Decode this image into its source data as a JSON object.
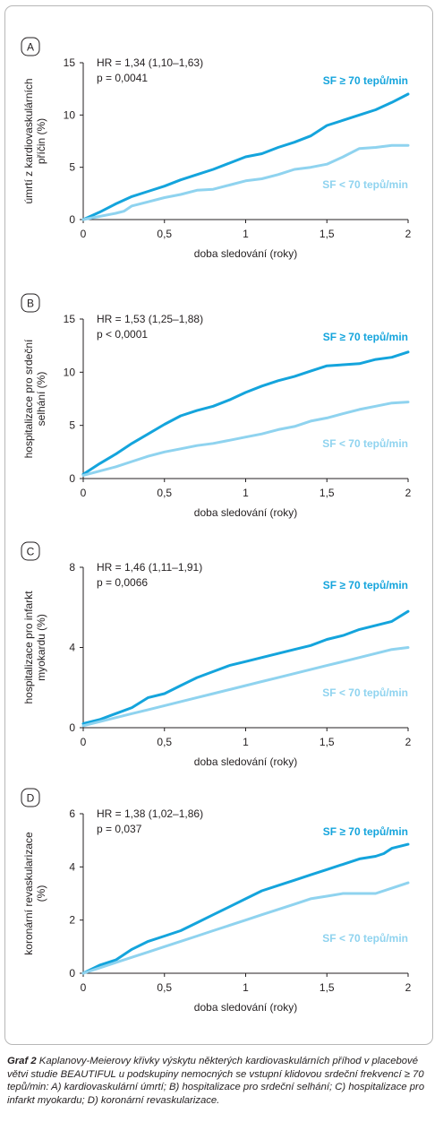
{
  "colors": {
    "high": "#14a4dc",
    "low": "#8fd3ef",
    "axis": "#231f20",
    "border": "#b7b7b7"
  },
  "chart_data": [
    {
      "type": "line",
      "panel": "A",
      "ylabel": [
        "úmrtí z kardiovaskulárních",
        "příčin (%)"
      ],
      "xlabel": "doba sledování (roky)",
      "hr": "HR = 1,34 (1,10–1,63)",
      "p": "p = 0,0041",
      "xlim": [
        0,
        2
      ],
      "ylim": [
        0,
        15
      ],
      "xticks": [
        0,
        0.5,
        1,
        1.5,
        2
      ],
      "xtick_labels": [
        "0",
        "0,5",
        "1",
        "1,5",
        "2"
      ],
      "yticks": [
        0,
        5,
        10,
        15
      ],
      "ytick_labels": [
        "0",
        "5",
        "10",
        "15"
      ],
      "series": [
        {
          "name": "SF ≥ 70 tepů/min",
          "kind": "high",
          "x": [
            0,
            0.1,
            0.2,
            0.3,
            0.4,
            0.5,
            0.6,
            0.7,
            0.8,
            0.9,
            1.0,
            1.1,
            1.2,
            1.3,
            1.4,
            1.5,
            1.6,
            1.7,
            1.8,
            1.9,
            2.0
          ],
          "y": [
            0,
            0.7,
            1.5,
            2.2,
            2.7,
            3.2,
            3.8,
            4.3,
            4.8,
            5.4,
            6.0,
            6.3,
            6.9,
            7.4,
            8.0,
            9.0,
            9.5,
            10.0,
            10.5,
            11.2,
            12.0
          ]
        },
        {
          "name": "SF < 70 tepů/min",
          "kind": "low",
          "x": [
            0,
            0.1,
            0.2,
            0.25,
            0.3,
            0.4,
            0.5,
            0.6,
            0.7,
            0.8,
            0.9,
            1.0,
            1.1,
            1.2,
            1.3,
            1.4,
            1.5,
            1.6,
            1.7,
            1.8,
            1.9,
            2.0
          ],
          "y": [
            0,
            0.3,
            0.6,
            0.8,
            1.3,
            1.7,
            2.1,
            2.4,
            2.8,
            2.9,
            3.3,
            3.7,
            3.9,
            4.3,
            4.8,
            5.0,
            5.3,
            6.0,
            6.8,
            6.9,
            7.1,
            7.1
          ]
        }
      ]
    },
    {
      "type": "line",
      "panel": "B",
      "ylabel": [
        "hospitalizace pro srdeční",
        "selhání (%)"
      ],
      "xlabel": "doba sledování (roky)",
      "hr": "HR = 1,53 (1,25–1,88)",
      "p": "p < 0,0001",
      "xlim": [
        0,
        2
      ],
      "ylim": [
        0,
        15
      ],
      "xticks": [
        0,
        0.5,
        1,
        1.5,
        2
      ],
      "xtick_labels": [
        "0",
        "0,5",
        "1",
        "1,5",
        "2"
      ],
      "yticks": [
        0,
        5,
        10,
        15
      ],
      "ytick_labels": [
        "0",
        "5",
        "10",
        "15"
      ],
      "series": [
        {
          "name": "SF ≥ 70 tepů/min",
          "kind": "high",
          "x": [
            0,
            0.1,
            0.2,
            0.3,
            0.4,
            0.5,
            0.6,
            0.7,
            0.8,
            0.9,
            1.0,
            1.1,
            1.2,
            1.3,
            1.4,
            1.5,
            1.6,
            1.7,
            1.8,
            1.9,
            2.0
          ],
          "y": [
            0.4,
            1.4,
            2.3,
            3.3,
            4.2,
            5.1,
            5.9,
            6.4,
            6.8,
            7.4,
            8.1,
            8.7,
            9.2,
            9.6,
            10.1,
            10.6,
            10.7,
            10.8,
            11.2,
            11.4,
            11.9
          ]
        },
        {
          "name": "SF < 70 tepů/min",
          "kind": "low",
          "x": [
            0,
            0.1,
            0.2,
            0.3,
            0.4,
            0.5,
            0.6,
            0.7,
            0.8,
            0.9,
            1.0,
            1.1,
            1.2,
            1.3,
            1.4,
            1.5,
            1.6,
            1.7,
            1.8,
            1.9,
            2.0
          ],
          "y": [
            0.3,
            0.7,
            1.1,
            1.6,
            2.1,
            2.5,
            2.8,
            3.1,
            3.3,
            3.6,
            3.9,
            4.2,
            4.6,
            4.9,
            5.4,
            5.7,
            6.1,
            6.5,
            6.8,
            7.1,
            7.2
          ]
        }
      ]
    },
    {
      "type": "line",
      "panel": "C",
      "ylabel": [
        "hospitalizace pro infarkt",
        "myokardu (%)"
      ],
      "xlabel": "doba sledování (roky)",
      "hr": "HR = 1,46 (1,11–1,91)",
      "p": "p = 0,0066",
      "xlim": [
        0,
        2
      ],
      "ylim": [
        0,
        8
      ],
      "xticks": [
        0,
        0.5,
        1,
        1.5,
        2
      ],
      "xtick_labels": [
        "0",
        "0,5",
        "1",
        "1,5",
        "2"
      ],
      "yticks": [
        0,
        4,
        8
      ],
      "ytick_labels": [
        "0",
        "4",
        "8"
      ],
      "series": [
        {
          "name": "SF ≥ 70 tepů/min",
          "kind": "high",
          "x": [
            0,
            0.1,
            0.2,
            0.3,
            0.4,
            0.5,
            0.6,
            0.7,
            0.8,
            0.9,
            1.0,
            1.1,
            1.2,
            1.3,
            1.4,
            1.5,
            1.6,
            1.7,
            1.8,
            1.9,
            2.0
          ],
          "y": [
            0.2,
            0.4,
            0.7,
            1.0,
            1.5,
            1.7,
            2.1,
            2.5,
            2.8,
            3.1,
            3.3,
            3.5,
            3.7,
            3.9,
            4.1,
            4.4,
            4.6,
            4.9,
            5.1,
            5.3,
            5.8
          ]
        },
        {
          "name": "SF < 70 tepů/min",
          "kind": "low",
          "x": [
            0,
            0.1,
            0.2,
            0.3,
            0.4,
            0.5,
            0.6,
            0.7,
            0.8,
            0.9,
            1.0,
            1.1,
            1.2,
            1.3,
            1.4,
            1.5,
            1.6,
            1.7,
            1.8,
            1.9,
            2.0
          ],
          "y": [
            0.1,
            0.3,
            0.5,
            0.7,
            0.9,
            1.1,
            1.3,
            1.5,
            1.7,
            1.9,
            2.1,
            2.3,
            2.5,
            2.7,
            2.9,
            3.1,
            3.3,
            3.5,
            3.7,
            3.9,
            4.0
          ]
        }
      ]
    },
    {
      "type": "line",
      "panel": "D",
      "ylabel": [
        "koronární revaskularizace",
        "(%)"
      ],
      "xlabel": "doba sledování (roky)",
      "hr": "HR = 1,38 (1,02–1,86)",
      "p": "p = 0,037",
      "xlim": [
        0,
        2
      ],
      "ylim": [
        0,
        6
      ],
      "xticks": [
        0,
        0.5,
        1,
        1.5,
        2
      ],
      "xtick_labels": [
        "0",
        "0,5",
        "1",
        "1,5",
        "2"
      ],
      "yticks": [
        0,
        2,
        4,
        6
      ],
      "ytick_labels": [
        "0",
        "2",
        "4",
        "6"
      ],
      "series": [
        {
          "name": "SF ≥ 70 tepů/min",
          "kind": "high",
          "x": [
            0,
            0.1,
            0.2,
            0.3,
            0.4,
            0.5,
            0.6,
            0.7,
            0.8,
            0.9,
            1.0,
            1.1,
            1.2,
            1.3,
            1.4,
            1.5,
            1.6,
            1.7,
            1.8,
            1.85,
            1.9,
            2.0
          ],
          "y": [
            0,
            0.3,
            0.5,
            0.9,
            1.2,
            1.4,
            1.6,
            1.9,
            2.2,
            2.5,
            2.8,
            3.1,
            3.3,
            3.5,
            3.7,
            3.9,
            4.1,
            4.3,
            4.4,
            4.5,
            4.7,
            4.85
          ]
        },
        {
          "name": "SF < 70 tepů/min",
          "kind": "low",
          "x": [
            0,
            0.1,
            0.2,
            0.3,
            0.4,
            0.5,
            0.6,
            0.7,
            0.8,
            0.9,
            1.0,
            1.1,
            1.2,
            1.3,
            1.4,
            1.5,
            1.6,
            1.7,
            1.8,
            1.9,
            2.0
          ],
          "y": [
            0,
            0.2,
            0.4,
            0.6,
            0.8,
            1.0,
            1.2,
            1.4,
            1.6,
            1.8,
            2.0,
            2.2,
            2.4,
            2.6,
            2.8,
            2.9,
            3.0,
            3.0,
            3.0,
            3.2,
            3.4
          ]
        }
      ]
    }
  ],
  "caption": {
    "label": "Graf 2",
    "text": " Kaplanovy-Meierovy křivky výskytu některých kardiovaskulárních příhod v placebové větvi studie BEAUTIFUL u podskupiny nemocných se vstupní klidovou srdeční frekvencí ≥ 70 tepů/min: A) kardiovaskulární úmrtí; B) hospitalizace pro srdeční selhání; C) hospitalizace pro infarkt myokardu; D) koronární revaskularizace."
  }
}
